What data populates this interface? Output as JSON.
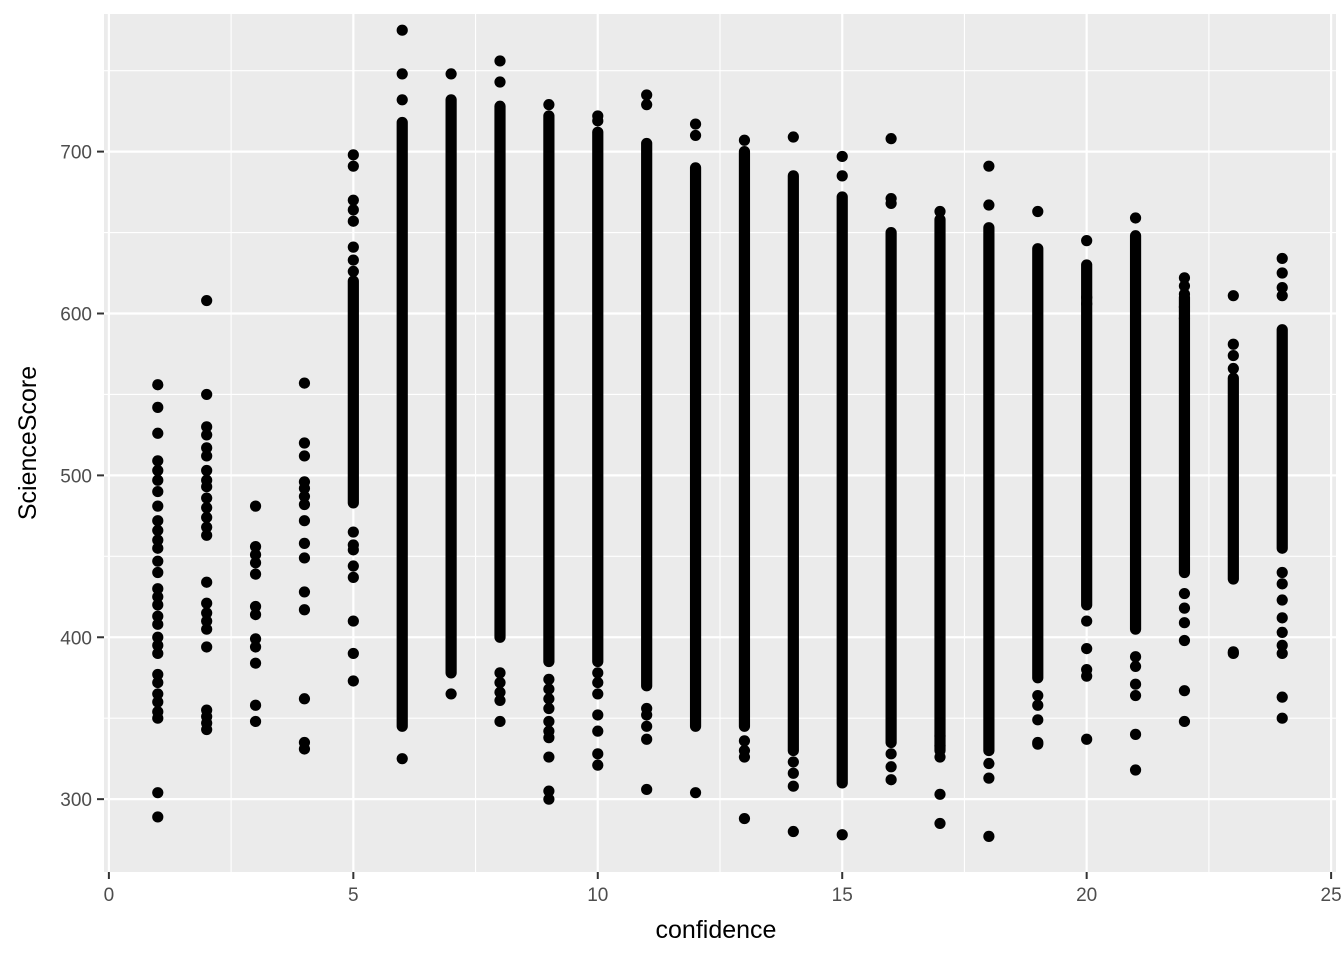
{
  "chart_data": {
    "type": "scatter",
    "title": "",
    "xlabel": "confidence",
    "ylabel": "ScienceScore",
    "xlim": [
      -0.1,
      25.1
    ],
    "ylim": [
      255,
      785
    ],
    "x_ticks": [
      0,
      5,
      10,
      15,
      20,
      25
    ],
    "y_ticks": [
      300,
      400,
      500,
      600,
      700
    ],
    "x_tick_labels": [
      "0",
      "5",
      "10",
      "15",
      "20",
      "25"
    ],
    "y_tick_labels": [
      "300",
      "400",
      "500",
      "600",
      "700"
    ],
    "grid": true,
    "legend": "none",
    "point_color": "#000000",
    "panel_color": "#ebebeb",
    "grid_color": "#ffffff",
    "series": [
      {
        "x": 1,
        "y": [
          289,
          304,
          350,
          354,
          360,
          365,
          372,
          377,
          390,
          395,
          400,
          408,
          413,
          420,
          425,
          430,
          440,
          447,
          455,
          460,
          466,
          472,
          481,
          490,
          497,
          503,
          509,
          526,
          542,
          556
        ]
      },
      {
        "x": 2,
        "y": [
          343,
          347,
          351,
          355,
          394,
          405,
          410,
          415,
          421,
          434,
          463,
          468,
          474,
          480,
          486,
          493,
          497,
          503,
          512,
          517,
          525,
          530,
          550,
          608
        ]
      },
      {
        "x": 3,
        "y": [
          348,
          358,
          384,
          394,
          399,
          414,
          419,
          439,
          446,
          451,
          456,
          481
        ]
      },
      {
        "x": 4,
        "y": [
          331,
          335,
          362,
          417,
          428,
          449,
          458,
          472,
          482,
          487,
          492,
          496,
          512,
          520,
          557
        ]
      },
      {
        "x": 5,
        "range": [
          483,
          620
        ],
        "y": [
          373,
          390,
          410,
          437,
          444,
          454,
          457,
          465,
          626,
          633,
          641,
          657,
          664,
          670,
          691,
          698
        ]
      },
      {
        "x": 6,
        "range": [
          345,
          718
        ],
        "y": [
          325,
          732,
          748,
          775
        ]
      },
      {
        "x": 7,
        "range": [
          378,
          732
        ],
        "y": [
          365,
          748
        ]
      },
      {
        "x": 8,
        "range": [
          400,
          728
        ],
        "y": [
          348,
          361,
          366,
          372,
          378,
          743,
          756
        ]
      },
      {
        "x": 9,
        "range": [
          385,
          722
        ],
        "y": [
          300,
          305,
          326,
          338,
          342,
          348,
          356,
          362,
          368,
          374,
          729
        ]
      },
      {
        "x": 10,
        "range": [
          385,
          712
        ],
        "y": [
          321,
          328,
          342,
          352,
          365,
          372,
          378,
          719,
          722
        ]
      },
      {
        "x": 11,
        "range": [
          370,
          705
        ],
        "y": [
          306,
          337,
          345,
          352,
          356,
          729,
          735
        ]
      },
      {
        "x": 12,
        "range": [
          345,
          690
        ],
        "y": [
          304,
          710,
          717
        ]
      },
      {
        "x": 13,
        "range": [
          345,
          700
        ],
        "y": [
          288,
          326,
          330,
          336,
          707
        ]
      },
      {
        "x": 14,
        "range": [
          330,
          685
        ],
        "y": [
          280,
          308,
          316,
          323,
          709
        ]
      },
      {
        "x": 15,
        "range": [
          310,
          672
        ],
        "y": [
          278,
          685,
          697
        ]
      },
      {
        "x": 16,
        "range": [
          335,
          650
        ],
        "y": [
          312,
          320,
          328,
          668,
          671,
          708
        ]
      },
      {
        "x": 17,
        "range": [
          330,
          658
        ],
        "y": [
          285,
          303,
          326,
          333,
          339,
          663
        ]
      },
      {
        "x": 18,
        "range": [
          330,
          653
        ],
        "y": [
          277,
          313,
          322,
          667,
          691
        ]
      },
      {
        "x": 19,
        "range": [
          375,
          640
        ],
        "y": [
          334,
          335,
          349,
          358,
          364,
          663
        ]
      },
      {
        "x": 20,
        "range": [
          420,
          630
        ],
        "y": [
          337,
          376,
          380,
          393,
          410,
          606,
          610,
          645
        ]
      },
      {
        "x": 21,
        "range": [
          405,
          648
        ],
        "y": [
          318,
          340,
          364,
          371,
          382,
          388,
          659
        ]
      },
      {
        "x": 22,
        "range": [
          440,
          610
        ],
        "y": [
          348,
          367,
          398,
          409,
          418,
          427,
          597,
          604,
          612,
          617,
          622
        ]
      },
      {
        "x": 23,
        "range": [
          436,
          560
        ],
        "y": [
          390,
          391,
          566,
          574,
          581,
          611
        ]
      },
      {
        "x": 24,
        "range": [
          455,
          590
        ],
        "y": [
          350,
          363,
          390,
          395,
          403,
          412,
          423,
          433,
          440,
          611,
          616,
          625,
          634
        ]
      }
    ]
  }
}
